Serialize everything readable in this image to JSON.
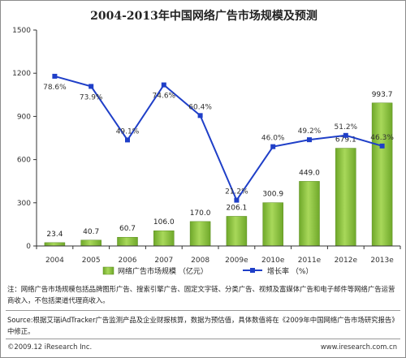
{
  "chart_data": {
    "type": "bar",
    "title": "2004-2013年中国网络广告市场规模及预测",
    "categories": [
      "2004",
      "2005",
      "2006",
      "2007",
      "2008",
      "2009e",
      "2010e",
      "2011e",
      "2012e",
      "2013e"
    ],
    "series": [
      {
        "name": "网络广告市场规模 （亿元）",
        "type": "bar",
        "axis": "left",
        "color": "#8cc63e",
        "values": [
          23.4,
          40.7,
          60.7,
          106.0,
          170.0,
          206.1,
          300.9,
          449.0,
          679.1,
          993.7
        ],
        "labels": [
          "23.4",
          "40.7",
          "60.7",
          "106.0",
          "170.0",
          "206.1",
          "300.9",
          "449.0",
          "679.1",
          "993.7"
        ]
      },
      {
        "name": "增长率 （%）",
        "type": "line",
        "axis": "right-hidden",
        "color": "#1f3fc8",
        "values": [
          78.6,
          73.9,
          49.1,
          74.6,
          60.4,
          21.2,
          46.0,
          49.2,
          51.2,
          46.3
        ],
        "labels": [
          "78.6%",
          "73.9%",
          "49.1%",
          "74.6%",
          "60.4%",
          "21.2%",
          "46.0%",
          "49.2%",
          "51.2%",
          "46.3%"
        ]
      }
    ],
    "ylim": [
      0,
      1500
    ],
    "yticks": [
      "0",
      "300",
      "600",
      "900",
      "1200",
      "1500"
    ],
    "rate_range": [
      0,
      100
    ],
    "legend_position": "bottom",
    "grid": false
  },
  "footer": {
    "note": "注：网络广告市场规模包括品牌图形广告、搜索引擎广告、固定文字链、分类广告、视频及富媒体广告和电子邮件等网络广告运营商收入，不包括渠道代理商收入。",
    "source": "Source:根据艾瑞iAdTracker广告监测产品及企业财报核算，数据为预估值，具体数值将在《2009年中国网络广告市场研究报告》中修正。",
    "copyright": "©2009.12 iResearch Inc.",
    "website": "www.iresearch.com.cn"
  }
}
